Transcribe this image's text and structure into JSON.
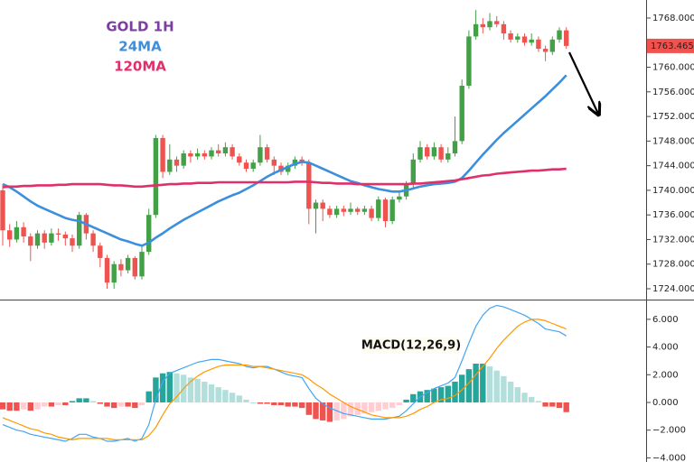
{
  "chart_data": [
    {
      "type": "candlestick",
      "title": "GOLD 1H",
      "title_color": "#7b3fa0",
      "open": [
        1740,
        1733.5,
        1732,
        1734,
        1732.5,
        1731,
        1733,
        1731.5,
        1733,
        1732.8,
        1732.2,
        1731,
        1736,
        1733,
        1731,
        1729,
        1725,
        1728,
        1727,
        1729,
        1726,
        1730,
        1736,
        1748.5,
        1743,
        1745,
        1744,
        1746,
        1745.5,
        1746,
        1745.5,
        1746.5,
        1746,
        1747,
        1745.5,
        1744.5,
        1743.5,
        1744.5,
        1747,
        1745,
        1744,
        1743,
        1744,
        1745,
        1744.5,
        1737,
        1738,
        1737,
        1736,
        1737,
        1736.5,
        1737,
        1736.5,
        1737,
        1735.5,
        1738.5,
        1735,
        1738.5,
        1739,
        1741,
        1745,
        1747,
        1745.5,
        1747,
        1745,
        1746,
        1748,
        1757,
        1765,
        1767,
        1766.5,
        1767.5,
        1767,
        1765.5,
        1764.5,
        1765,
        1764,
        1764.5,
        1763,
        1762.5,
        1764.5,
        1766
      ],
      "high": [
        1741,
        1734.5,
        1735,
        1734.8,
        1733,
        1733.5,
        1733.5,
        1733.8,
        1733.8,
        1733.3,
        1732.8,
        1736.5,
        1736.3,
        1733.5,
        1731.5,
        1729.5,
        1728.5,
        1728.8,
        1729.5,
        1729.3,
        1731,
        1737,
        1749,
        1749,
        1747.5,
        1745.5,
        1746.5,
        1746.5,
        1746.8,
        1746.5,
        1747,
        1747.5,
        1747.8,
        1747.5,
        1746,
        1745,
        1745,
        1749,
        1747.5,
        1745.5,
        1744.5,
        1744.5,
        1745.5,
        1745.5,
        1745,
        1738.5,
        1738.5,
        1737.5,
        1737.5,
        1737.5,
        1738,
        1737.3,
        1737.5,
        1737.5,
        1739,
        1738.8,
        1739,
        1740,
        1741.5,
        1746,
        1748,
        1747.5,
        1747.8,
        1747.5,
        1747,
        1752,
        1758,
        1766,
        1769.3,
        1768,
        1768.8,
        1768.3,
        1767.5,
        1766,
        1765.5,
        1765.5,
        1765.5,
        1765,
        1763.5,
        1765,
        1766.5,
        1766.5
      ],
      "low": [
        1731,
        1730.8,
        1731.5,
        1731.5,
        1728.5,
        1730.5,
        1730.5,
        1731,
        1731.8,
        1731,
        1730,
        1730.5,
        1732,
        1730,
        1727.5,
        1724,
        1724,
        1726,
        1726.5,
        1725.5,
        1725.5,
        1729.5,
        1735.5,
        1742,
        1742.5,
        1743,
        1743.5,
        1744.5,
        1745,
        1745,
        1745,
        1745.5,
        1745.5,
        1745,
        1744,
        1743,
        1743,
        1744,
        1744.5,
        1742.5,
        1742.5,
        1742.5,
        1743.5,
        1744,
        1734.5,
        1733,
        1735,
        1735.5,
        1735.5,
        1735.8,
        1736,
        1736,
        1736,
        1735,
        1735,
        1734,
        1734.5,
        1738,
        1738.5,
        1740.5,
        1744.5,
        1745,
        1745,
        1744.5,
        1744.5,
        1745.5,
        1747.5,
        1756.5,
        1764.5,
        1765.5,
        1766,
        1766.5,
        1764.5,
        1764,
        1764,
        1763.5,
        1763.5,
        1762.5,
        1761,
        1762,
        1764,
        1763
      ],
      "close": [
        1733.5,
        1732,
        1734,
        1732.5,
        1731,
        1733,
        1731.5,
        1733,
        1732.8,
        1732.2,
        1731,
        1736,
        1733,
        1731,
        1729,
        1725,
        1728,
        1727,
        1729,
        1726,
        1730,
        1736,
        1748.5,
        1743,
        1745,
        1744,
        1746,
        1745.5,
        1746,
        1745.5,
        1746.5,
        1746,
        1747,
        1745.5,
        1744.5,
        1743.5,
        1744.5,
        1747,
        1745,
        1744,
        1743,
        1744,
        1745,
        1744.5,
        1737,
        1738,
        1737,
        1736,
        1737,
        1736.5,
        1737,
        1736.5,
        1737,
        1735.5,
        1738.5,
        1735,
        1738.5,
        1739,
        1741,
        1745,
        1747,
        1745.5,
        1747,
        1745,
        1746,
        1748,
        1757,
        1765,
        1767,
        1766.5,
        1767.5,
        1767,
        1765.5,
        1764.5,
        1765,
        1764,
        1764.5,
        1763,
        1762.5,
        1764.5,
        1766,
        1763.465
      ],
      "up_color": "#43a047",
      "down_color": "#ef5350",
      "series": [
        {
          "name": "24MA",
          "color": "#3b8fdc",
          "values": [
            1741,
            1740.5,
            1739.8,
            1739,
            1738.2,
            1737.5,
            1737,
            1736.5,
            1736,
            1735.5,
            1735.2,
            1735,
            1734.5,
            1734,
            1733.5,
            1733,
            1732.5,
            1732,
            1731.7,
            1731.3,
            1731,
            1731.5,
            1732.3,
            1733,
            1733.8,
            1734.5,
            1735.2,
            1735.8,
            1736.4,
            1737,
            1737.6,
            1738.2,
            1738.7,
            1739.2,
            1739.6,
            1740.2,
            1740.8,
            1741.5,
            1742.2,
            1742.8,
            1743.3,
            1743.8,
            1744.3,
            1744.6,
            1744.5,
            1744,
            1743.5,
            1743,
            1742.5,
            1742,
            1741.5,
            1741.2,
            1740.8,
            1740.5,
            1740.2,
            1740,
            1739.8,
            1739.8,
            1740,
            1740.3,
            1740.6,
            1740.8,
            1741,
            1741.1,
            1741.2,
            1741.4,
            1742,
            1743.2,
            1744.5,
            1745.8,
            1747,
            1748.2,
            1749.3,
            1750.3,
            1751.3,
            1752.3,
            1753.3,
            1754.3,
            1755.3,
            1756.4,
            1757.5,
            1758.7
          ]
        },
        {
          "name": "120MA",
          "color": "#e0306a",
          "values": [
            1740.5,
            1740.6,
            1740.6,
            1740.7,
            1740.7,
            1740.8,
            1740.8,
            1740.8,
            1740.9,
            1740.9,
            1741,
            1741,
            1741,
            1741,
            1741,
            1740.9,
            1740.8,
            1740.8,
            1740.7,
            1740.6,
            1740.6,
            1740.7,
            1740.8,
            1740.9,
            1741,
            1741,
            1741.1,
            1741.1,
            1741.2,
            1741.2,
            1741.2,
            1741.3,
            1741.3,
            1741.3,
            1741.3,
            1741.3,
            1741.3,
            1741.3,
            1741.3,
            1741.3,
            1741.3,
            1741.3,
            1741.4,
            1741.4,
            1741.4,
            1741.3,
            1741.2,
            1741.2,
            1741.1,
            1741.1,
            1741.1,
            1741,
            1741,
            1741,
            1741,
            1741,
            1741,
            1741,
            1741,
            1741.1,
            1741.1,
            1741.2,
            1741.3,
            1741.4,
            1741.5,
            1741.6,
            1741.8,
            1742,
            1742.2,
            1742.4,
            1742.5,
            1742.7,
            1742.8,
            1742.9,
            1743,
            1743.1,
            1743.2,
            1743.2,
            1743.3,
            1743.4,
            1743.4,
            1743.5
          ]
        }
      ],
      "last_price": 1763.465,
      "last_price_color": "#ef5350",
      "ylim": [
        1722.24,
        1770.93
      ],
      "yticks": [
        {
          "value": 1768,
          "label": "1768.000"
        },
        {
          "value": 1764,
          "label": "1764.000"
        },
        {
          "value": 1760,
          "label": "1760.000"
        },
        {
          "value": 1756,
          "label": "1756.000"
        },
        {
          "value": 1752,
          "label": "1752.000"
        },
        {
          "value": 1748,
          "label": "1748.000"
        },
        {
          "value": 1744,
          "label": "1744.000"
        },
        {
          "value": 1740,
          "label": "1740.000"
        },
        {
          "value": 1736,
          "label": "1736.000"
        },
        {
          "value": 1732,
          "label": "1732.000"
        },
        {
          "value": 1728,
          "label": "1728.000"
        },
        {
          "value": 1724,
          "label": "1724.000"
        }
      ]
    },
    {
      "type": "macd",
      "title": "MACD(12,26,9)",
      "histogram": {
        "values": [
          -0.5,
          -0.6,
          -0.6,
          -0.5,
          -0.6,
          -0.5,
          -0.3,
          -0.3,
          -0.2,
          -0.2,
          0.1,
          0.3,
          0.3,
          0.1,
          -0.1,
          -0.3,
          -0.4,
          -0.3,
          -0.3,
          -0.4,
          -0.2,
          0.8,
          1.8,
          2.1,
          2.2,
          2.1,
          2.0,
          1.8,
          1.7,
          1.5,
          1.3,
          1.1,
          0.9,
          0.7,
          0.5,
          0.2,
          0.0,
          -0.1,
          -0.1,
          -0.2,
          -0.2,
          -0.3,
          -0.3,
          -0.4,
          -0.9,
          -1.2,
          -1.3,
          -1.4,
          -1.3,
          -1.2,
          -1.0,
          -0.9,
          -0.8,
          -0.7,
          -0.6,
          -0.5,
          -0.4,
          -0.2,
          0.2,
          0.6,
          0.8,
          0.9,
          1.0,
          1.1,
          1.2,
          1.5,
          2.0,
          2.4,
          2.8,
          2.8,
          2.6,
          2.3,
          1.9,
          1.5,
          1.1,
          0.7,
          0.4,
          0.1,
          -0.3,
          -0.3,
          -0.4,
          -0.7
        ],
        "colors": {
          "pos_rising": "#26a69a",
          "pos_falling": "#b2dfdb",
          "neg_falling": "#ef5350",
          "neg_rising": "#ffcdd2"
        }
      },
      "series": [
        {
          "color": "#42a5f5",
          "values": [
            -1.6,
            -1.8,
            -2.0,
            -2.1,
            -2.3,
            -2.4,
            -2.5,
            -2.6,
            -2.7,
            -2.8,
            -2.6,
            -2.3,
            -2.3,
            -2.5,
            -2.6,
            -2.8,
            -2.8,
            -2.7,
            -2.6,
            -2.8,
            -2.6,
            -1.6,
            0.2,
            1.5,
            2.1,
            2.3,
            2.5,
            2.7,
            2.9,
            3.0,
            3.1,
            3.1,
            3.0,
            2.9,
            2.8,
            2.6,
            2.5,
            2.6,
            2.6,
            2.4,
            2.2,
            2.0,
            1.9,
            1.8,
            1.0,
            0.3,
            -0.1,
            -0.4,
            -0.6,
            -0.8,
            -0.9,
            -1.0,
            -1.1,
            -1.2,
            -1.2,
            -1.2,
            -1.1,
            -1.0,
            -0.6,
            -0.1,
            0.4,
            0.7,
            1.0,
            1.2,
            1.4,
            1.8,
            3.0,
            4.3,
            5.5,
            6.3,
            6.8,
            7.0,
            6.9,
            6.7,
            6.5,
            6.3,
            6.0,
            5.7,
            5.3,
            5.2,
            5.1,
            4.8
          ]
        },
        {
          "color": "#ff9800",
          "values": [
            -1.1,
            -1.3,
            -1.5,
            -1.7,
            -1.9,
            -2.0,
            -2.2,
            -2.3,
            -2.5,
            -2.6,
            -2.7,
            -2.6,
            -2.6,
            -2.6,
            -2.6,
            -2.6,
            -2.7,
            -2.7,
            -2.7,
            -2.7,
            -2.7,
            -2.4,
            -1.8,
            -0.9,
            -0.1,
            0.4,
            1.0,
            1.5,
            1.9,
            2.2,
            2.4,
            2.6,
            2.7,
            2.7,
            2.7,
            2.7,
            2.6,
            2.6,
            2.5,
            2.4,
            2.3,
            2.2,
            2.1,
            2.0,
            1.7,
            1.3,
            1.0,
            0.6,
            0.3,
            0.0,
            -0.3,
            -0.5,
            -0.7,
            -0.9,
            -1.0,
            -1.1,
            -1.1,
            -1.1,
            -1.0,
            -0.8,
            -0.5,
            -0.3,
            0.0,
            0.2,
            0.3,
            0.5,
            0.9,
            1.4,
            2.0,
            2.6,
            3.2,
            3.9,
            4.5,
            5.0,
            5.5,
            5.8,
            6.0,
            6.0,
            5.9,
            5.7,
            5.5,
            5.3
          ]
        }
      ],
      "ylim": [
        -4.3,
        7.36
      ],
      "yticks": [
        {
          "value": 6,
          "label": "6.000"
        },
        {
          "value": 4,
          "label": "4.000"
        },
        {
          "value": 2,
          "label": "2.000"
        },
        {
          "value": 0,
          "label": "0.000"
        },
        {
          "value": -2,
          "label": "−2.000"
        },
        {
          "value": -4,
          "label": "−4.000"
        }
      ]
    }
  ]
}
